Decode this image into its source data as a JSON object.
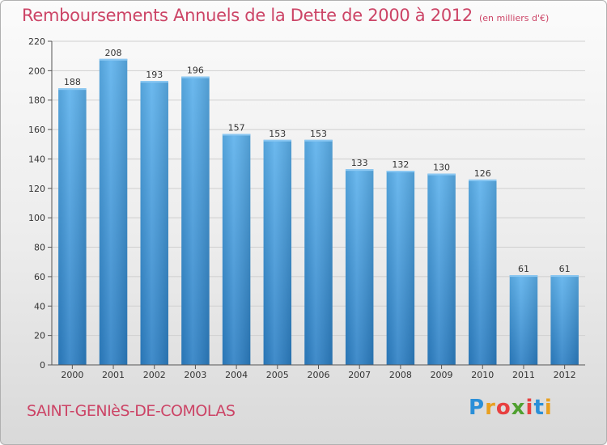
{
  "chart_title": "Remboursements Annuels de la Dette de 2000 à 2012",
  "chart_subtitle": "(en milliers d'€)",
  "commune": "SAINT-GENIèS-DE-COMOLAS",
  "logo": {
    "letters": [
      {
        "ch": "P",
        "color": "#2a8fd8"
      },
      {
        "ch": "r",
        "color": "#e8a020"
      },
      {
        "ch": "o",
        "color": "#e84040"
      },
      {
        "ch": "x",
        "color": "#50a030"
      },
      {
        "ch": "i",
        "color": "#e84040"
      },
      {
        "ch": "t",
        "color": "#2a8fd8"
      },
      {
        "ch": "i",
        "color": "#e8a020"
      }
    ]
  },
  "colors": {
    "bar": "#4a9fe0",
    "title": "#cc4466"
  },
  "chart_data": {
    "type": "bar",
    "title": "Remboursements Annuels de la Dette de 2000 à 2012",
    "subtitle": "(en milliers d'€)",
    "categories": [
      "2000",
      "2001",
      "2002",
      "2003",
      "2004",
      "2005",
      "2006",
      "2007",
      "2008",
      "2009",
      "2010",
      "2011",
      "2012"
    ],
    "values": [
      188,
      208,
      193,
      196,
      157,
      153,
      153,
      133,
      132,
      130,
      126,
      61,
      61
    ],
    "ylim": [
      0,
      220
    ],
    "yticks": [
      0,
      20,
      40,
      60,
      80,
      100,
      120,
      140,
      160,
      180,
      200,
      220
    ],
    "grid": true,
    "xlabel": "",
    "ylabel": ""
  }
}
